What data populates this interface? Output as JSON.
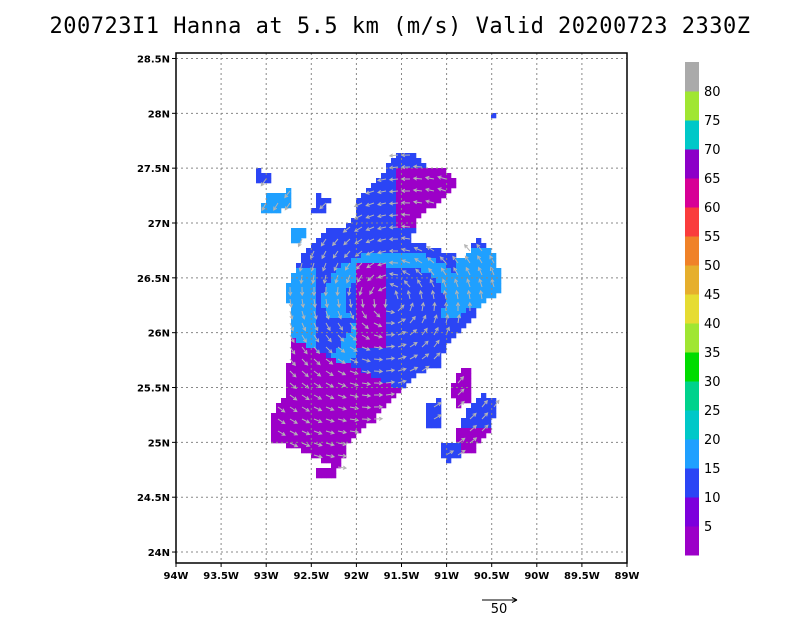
{
  "title": "200723I1 Hanna at 5.5 km (m/s) Valid 20200723 2330Z",
  "chart_data": {
    "type": "heatmap",
    "title": "200723I1 Hanna at 5.5 km (m/s) Valid 20200723 2330Z",
    "x_range_deg": [
      -94,
      -89
    ],
    "y_range_deg": [
      23.9,
      28.55
    ],
    "x_tick_labels": [
      "94W",
      "93.5W",
      "93W",
      "92.5W",
      "92W",
      "91.5W",
      "91W",
      "90.5W",
      "90W",
      "89.5W",
      "89W"
    ],
    "y_tick_labels": [
      "24N",
      "24.5N",
      "25N",
      "25.5N",
      "26N",
      "26.5N",
      "27N",
      "27.5N",
      "28N",
      "28.5N"
    ],
    "grid": true,
    "colorbar": {
      "labels": [
        "5",
        "10",
        "15",
        "20",
        "25",
        "30",
        "35",
        "40",
        "45",
        "50",
        "55",
        "60",
        "65",
        "70",
        "75",
        "80"
      ],
      "colors": [
        "#9c00c8",
        "#7d00dc",
        "#2b45f5",
        "#1fa0ff",
        "#00c8c8",
        "#00d28c",
        "#00dc00",
        "#a0e632",
        "#e6dc32",
        "#e6af2d",
        "#f08228",
        "#fa3c3c",
        "#d70096",
        "#8c00c8",
        "#00c8c8",
        "#a0e632",
        "#aaaaaa"
      ],
      "position": "right"
    },
    "reference_vector_label": "50",
    "reference_vector_value": 50
  }
}
